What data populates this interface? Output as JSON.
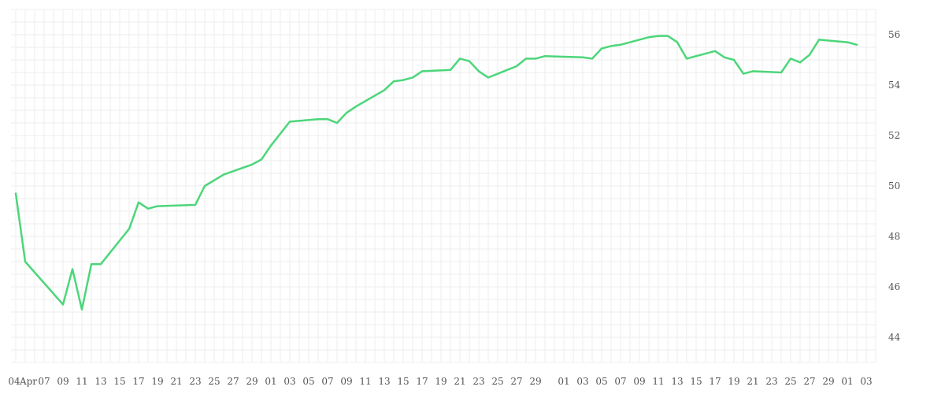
{
  "chart_data": {
    "type": "line",
    "title": "",
    "xlabel": "",
    "ylabel": "",
    "ylim": [
      43,
      57
    ],
    "y_ticks": [
      44,
      46,
      48,
      50,
      52,
      54,
      56
    ],
    "y_axis_side": "right",
    "grid": true,
    "x_tick_labels": [
      "04",
      "Apr",
      "07",
      "09",
      "11",
      "13",
      "15",
      "17",
      "19",
      "21",
      "23",
      "25",
      "27",
      "29",
      "01",
      "03",
      "05",
      "07",
      "09",
      "11",
      "13",
      "15",
      "17",
      "19",
      "21",
      "23",
      "25",
      "27",
      "29",
      "01",
      "03",
      "05",
      "07",
      "09",
      "11",
      "13",
      "15",
      "17",
      "19",
      "21",
      "23",
      "25",
      "27",
      "29",
      "01",
      "03"
    ],
    "colors": {
      "line": "#4cd67a",
      "grid": "#eeeeee",
      "text": "#555555"
    },
    "series": [
      {
        "x": [
          "2024-04-04",
          "2024-04-05",
          "2024-04-09",
          "2024-04-10",
          "2024-04-11",
          "2024-04-12",
          "2024-04-13",
          "2024-04-16",
          "2024-04-17",
          "2024-04-18",
          "2024-04-19",
          "2024-04-23",
          "2024-04-24",
          "2024-04-26",
          "2024-04-29",
          "2024-04-30",
          "2024-05-01",
          "2024-05-03",
          "2024-05-06",
          "2024-05-07",
          "2024-05-08",
          "2024-05-09",
          "2024-05-10",
          "2024-05-13",
          "2024-05-14",
          "2024-05-15",
          "2024-05-16",
          "2024-05-17",
          "2024-05-20",
          "2024-05-21",
          "2024-05-22",
          "2024-05-23",
          "2024-05-24",
          "2024-05-27",
          "2024-05-28",
          "2024-05-29",
          "2024-05-30",
          "2024-06-03",
          "2024-06-04",
          "2024-06-05",
          "2024-06-06",
          "2024-06-07",
          "2024-06-10",
          "2024-06-11",
          "2024-06-12",
          "2024-06-13",
          "2024-06-14",
          "2024-06-17",
          "2024-06-18",
          "2024-06-19",
          "2024-06-20",
          "2024-06-21",
          "2024-06-24",
          "2024-06-25",
          "2024-06-26",
          "2024-06-27",
          "2024-06-28",
          "2024-07-01",
          "2024-07-02"
        ],
        "values": [
          49.7,
          47.0,
          45.3,
          46.7,
          45.1,
          46.9,
          46.9,
          48.3,
          49.35,
          49.1,
          49.2,
          49.25,
          50.0,
          50.45,
          50.85,
          51.05,
          51.6,
          52.55,
          52.65,
          52.65,
          52.5,
          52.9,
          53.15,
          53.8,
          54.15,
          54.2,
          54.3,
          54.55,
          54.6,
          55.05,
          54.95,
          54.55,
          54.3,
          54.75,
          55.05,
          55.05,
          55.15,
          55.1,
          55.05,
          55.45,
          55.55,
          55.6,
          55.9,
          55.95,
          55.95,
          55.7,
          55.05,
          55.35,
          55.1,
          55.0,
          54.45,
          54.55,
          54.5,
          55.05,
          54.9,
          55.2,
          55.8,
          55.7,
          55.6
        ]
      }
    ]
  }
}
